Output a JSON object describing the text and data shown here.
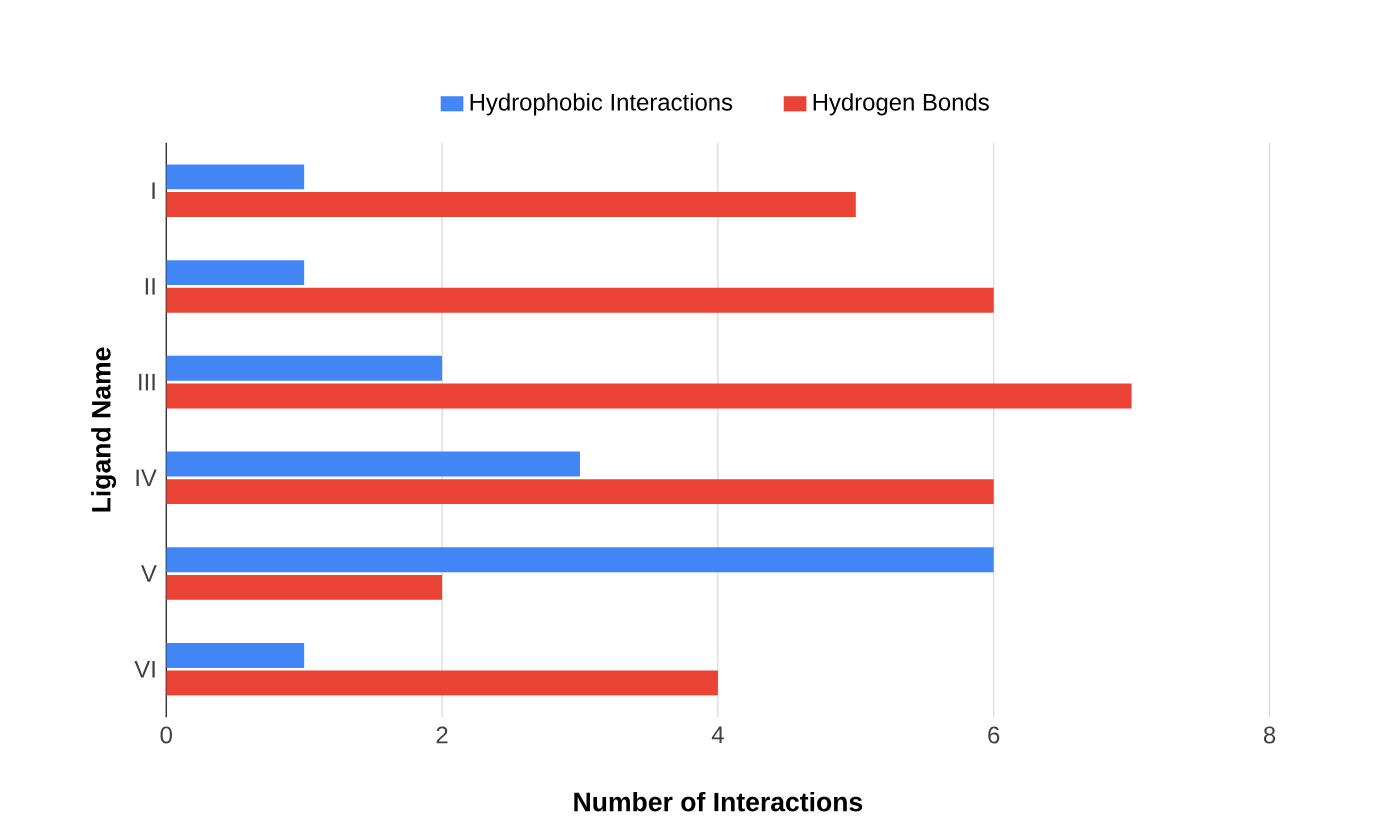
{
  "chart_data": {
    "type": "bar",
    "orientation": "horizontal",
    "xlabel": "Number of Interactions",
    "ylabel": "Ligand Name",
    "categories": [
      "I",
      "II",
      "III",
      "IV",
      "V",
      "VI"
    ],
    "series": [
      {
        "name": "Hydrophobic Interactions",
        "color": "#4285f4",
        "values": [
          1,
          1,
          2,
          3,
          6,
          1
        ]
      },
      {
        "name": "Hydrogen Bonds",
        "color": "#ea4335",
        "values": [
          5,
          6,
          7,
          6,
          2,
          4
        ]
      }
    ],
    "xlim": [
      0,
      8
    ],
    "xticks": [
      0,
      2,
      4,
      6,
      8
    ],
    "grid": "x",
    "legend": "top"
  }
}
